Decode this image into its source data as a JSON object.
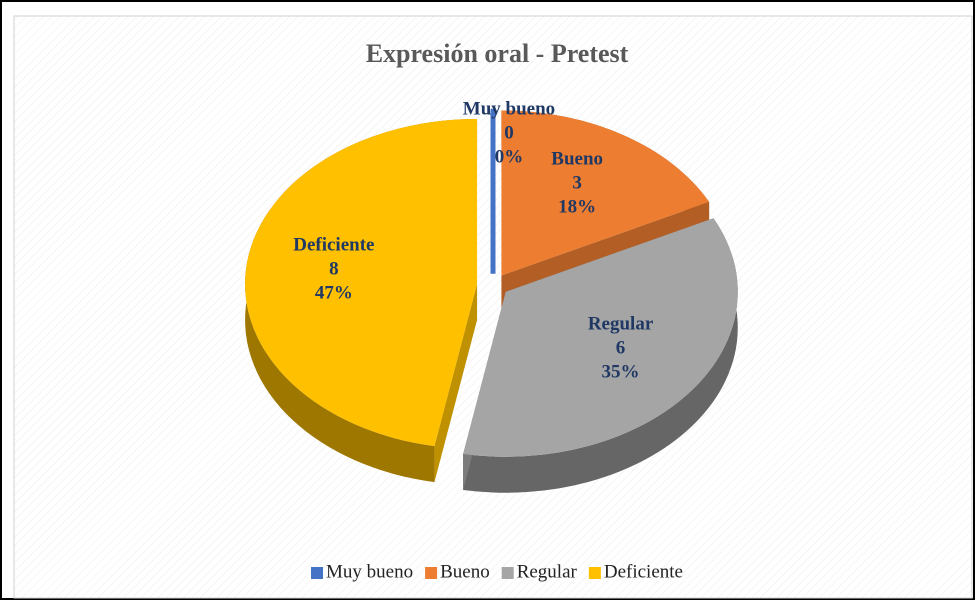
{
  "chart_data": {
    "type": "pie",
    "title": "Expresión oral - Pretest",
    "categories": [
      "Muy bueno",
      "Bueno",
      "Regular",
      "Deficiente"
    ],
    "values": [
      0,
      3,
      6,
      8
    ],
    "percent_labels": [
      "0%",
      "18%",
      "35%",
      "47%"
    ],
    "colors": [
      "#4472c4",
      "#ed7d31",
      "#a5a5a5",
      "#ffc000"
    ],
    "legend": "bottom"
  }
}
